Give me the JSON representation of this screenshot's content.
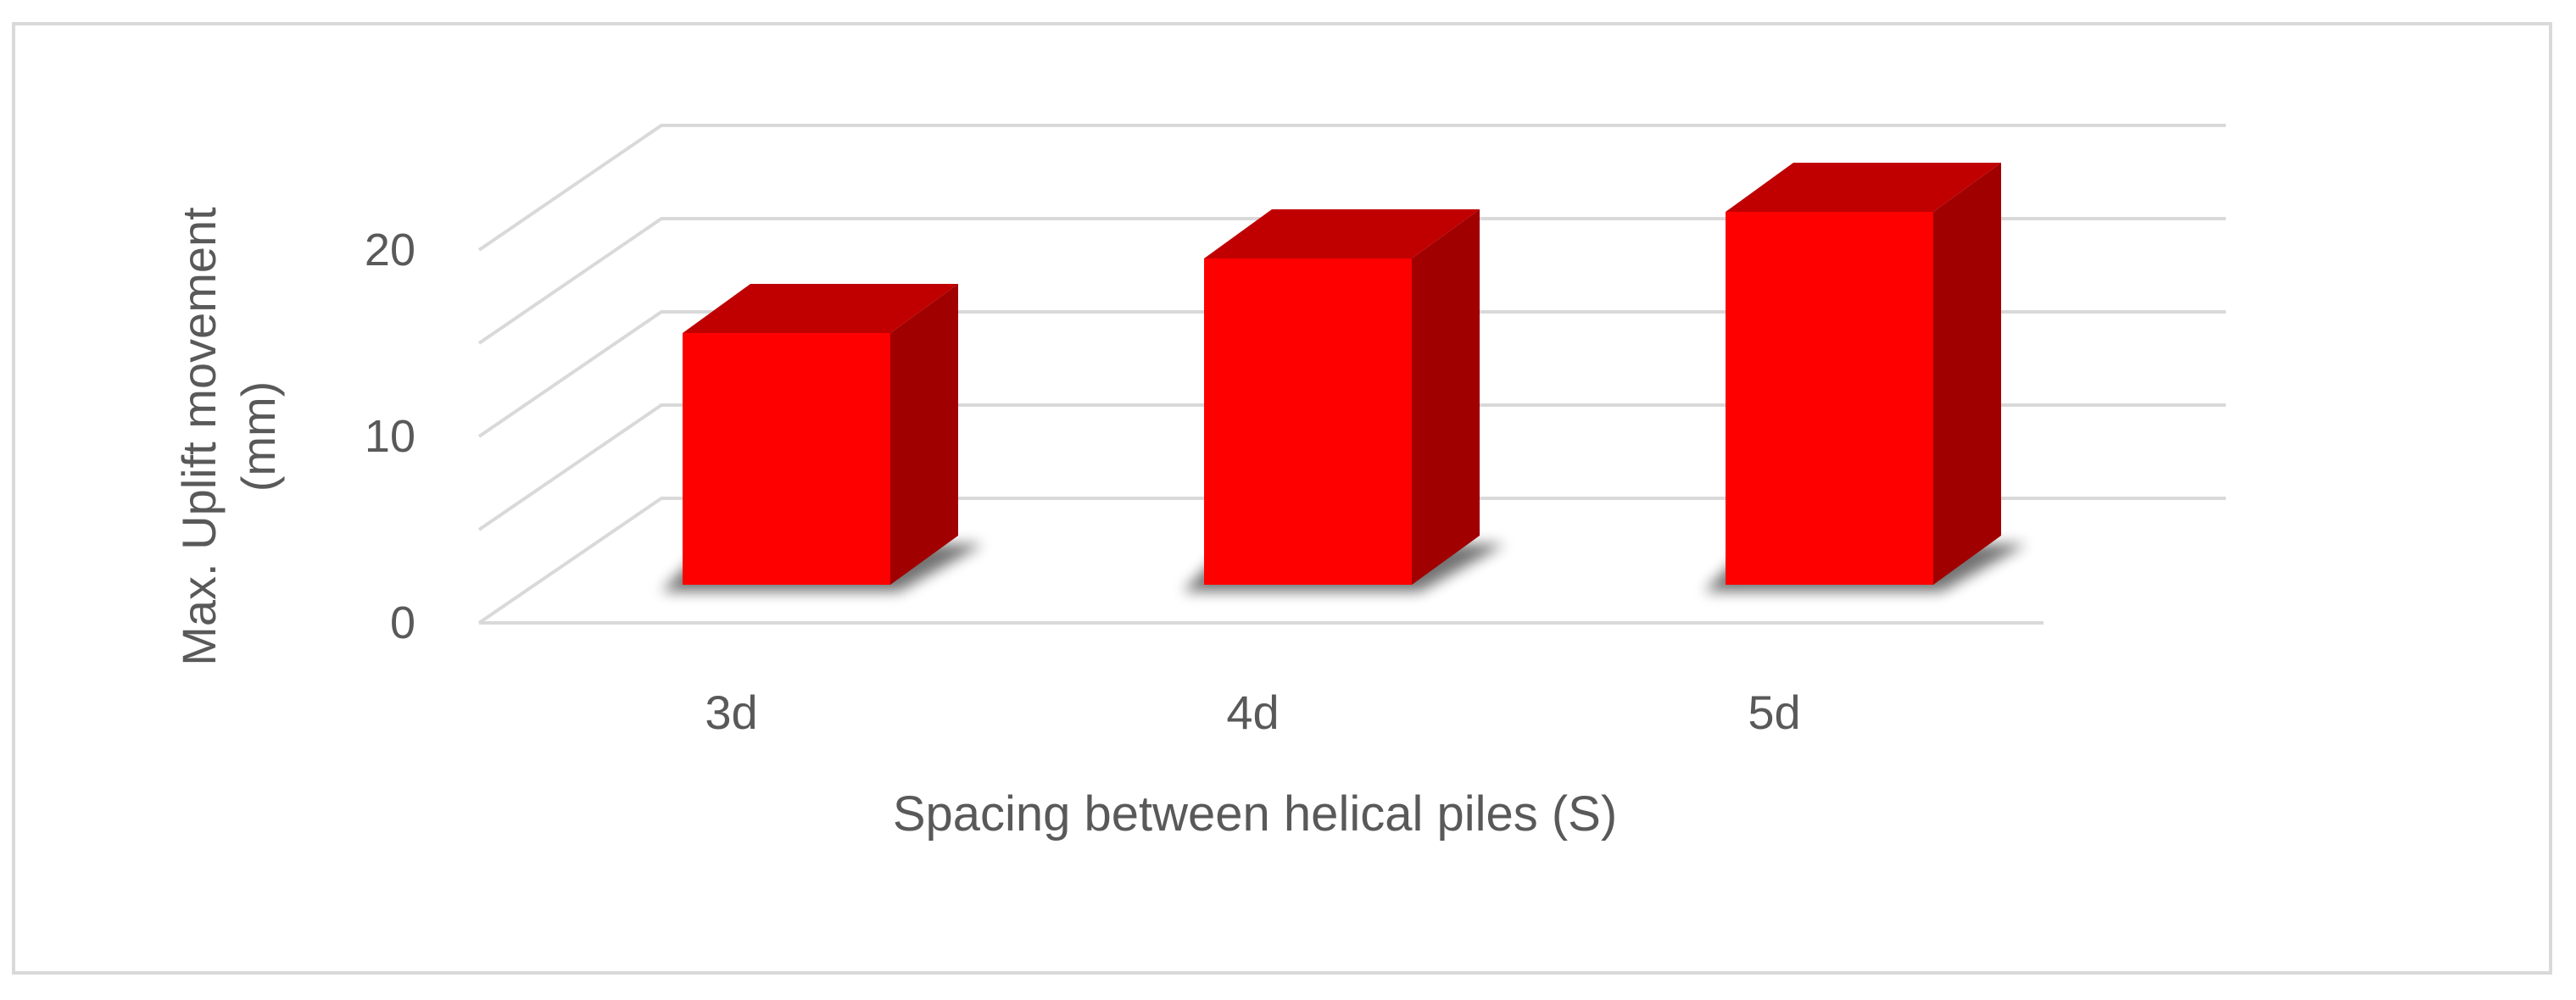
{
  "chart_data": {
    "type": "bar",
    "style": "3d-column",
    "categories": [
      "3d",
      "4d",
      "5d"
    ],
    "values": [
      13.5,
      17.5,
      20
    ],
    "ylim": [
      0,
      20
    ],
    "yticks": [
      0,
      10,
      20
    ],
    "xlabel": "Spacing between helical piles (S)",
    "ylabel": "Max. Uplift movement (mm)",
    "grid": true,
    "legend": "none",
    "colors": {
      "front": "#ff0000",
      "top": "#c00000",
      "side": "#a00000",
      "grid": "#d9d9d9"
    }
  }
}
